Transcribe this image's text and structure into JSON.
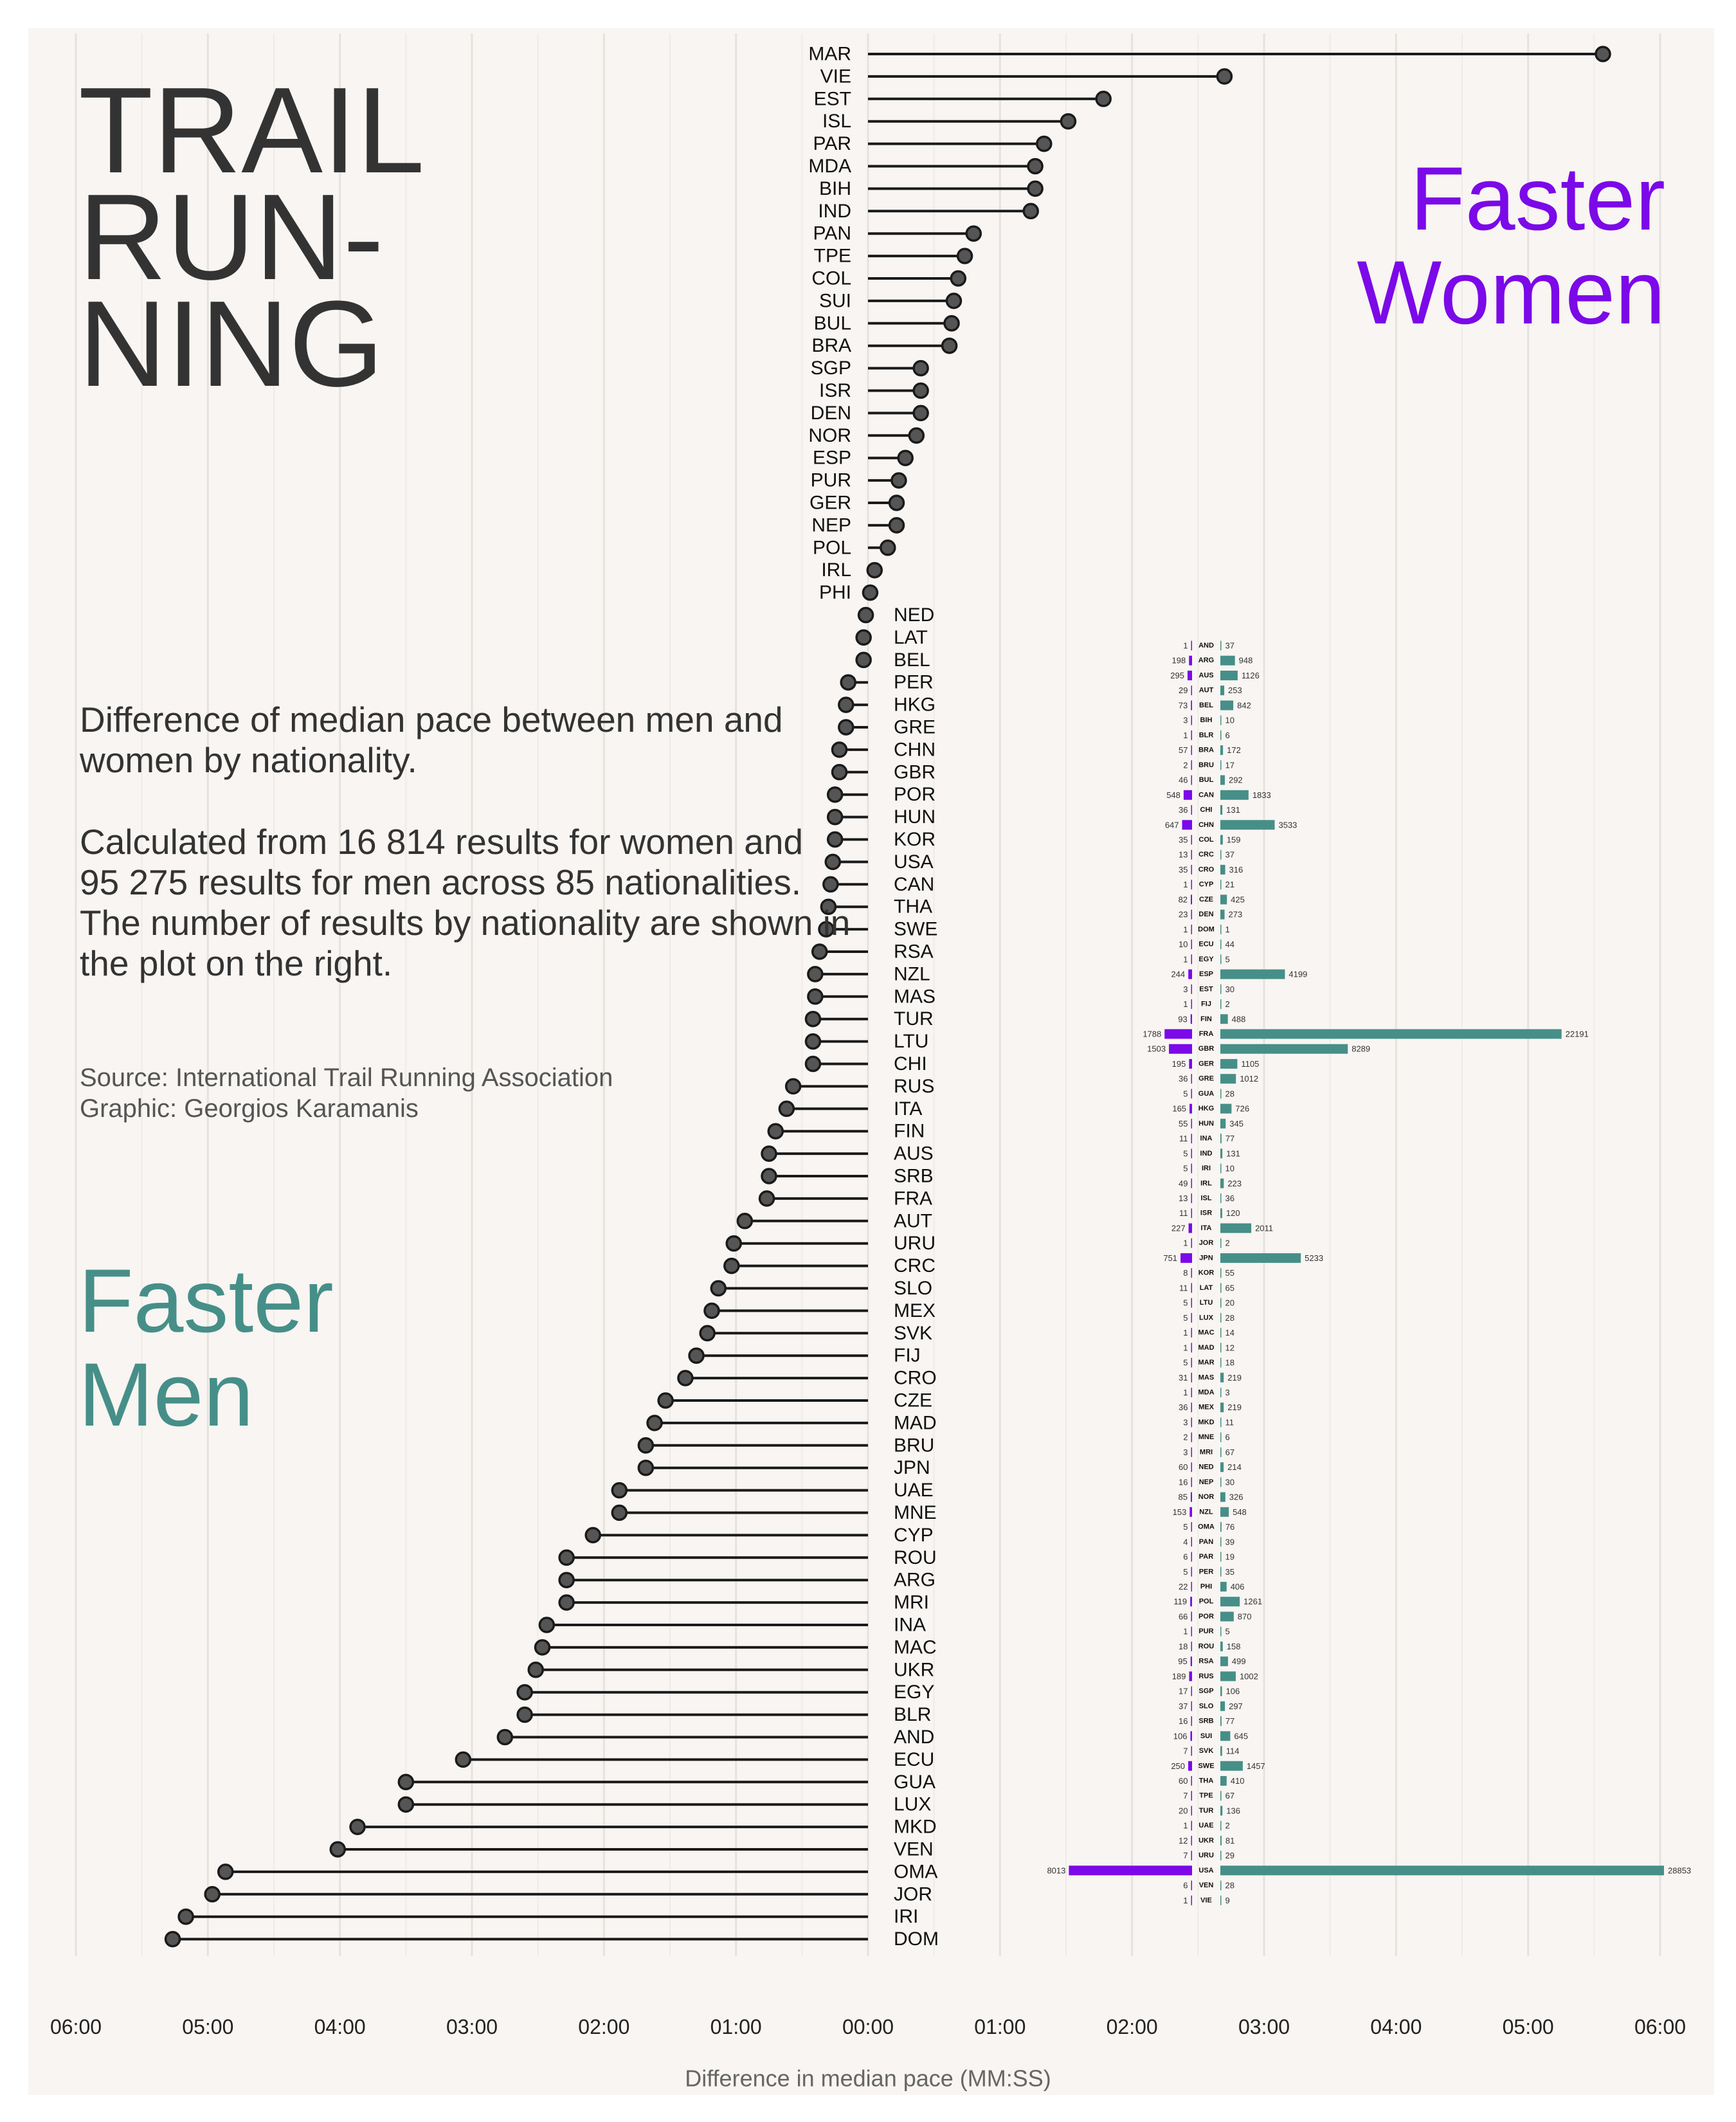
{
  "title": "TRAIL\nRUN-\nNING",
  "faster_women_label": "Faster\nWomen",
  "faster_men_label": "Faster\nMen",
  "description": "Difference of median pace between men and women by nationality.",
  "description2": "Calculated from 16 814 results for women and 95 275 results for men across 85 nationalities. The number of results by nationality are shown in the plot on the right.",
  "source": "Source: International Trail Running Association",
  "graphic": "Graphic: Georgios Karamanis",
  "colors": {
    "women": "#7b09e8",
    "men": "#468f88",
    "ink": "#333333",
    "background": "#f8f5f2",
    "point": "#555555"
  },
  "chart_data": [
    {
      "type": "lollipop",
      "xlabel": "Difference in median pace (MM:SS)",
      "x_unit": "seconds (positive = women faster, negative = men faster)",
      "xlim": [
        -360,
        360
      ],
      "x_ticks": [
        -360,
        -300,
        -240,
        -180,
        -120,
        -60,
        0,
        60,
        120,
        180,
        240,
        300,
        360
      ],
      "x_tick_labels": [
        "06:00",
        "05:00",
        "04:00",
        "03:00",
        "02:00",
        "01:00",
        "00:00",
        "01:00",
        "02:00",
        "03:00",
        "04:00",
        "05:00",
        "06:00"
      ],
      "grid": "vertical, every 30 seconds",
      "countries": [
        "MAR",
        "VIE",
        "EST",
        "ISL",
        "PAR",
        "MDA",
        "BIH",
        "IND",
        "PAN",
        "TPE",
        "COL",
        "SUI",
        "BUL",
        "BRA",
        "SGP",
        "ISR",
        "DEN",
        "NOR",
        "ESP",
        "PUR",
        "GER",
        "NEP",
        "POL",
        "IRL",
        "PHI",
        "NED",
        "LAT",
        "BEL",
        "PER",
        "HKG",
        "GRE",
        "CHN",
        "GBR",
        "POR",
        "HUN",
        "KOR",
        "USA",
        "CAN",
        "THA",
        "SWE",
        "RSA",
        "NZL",
        "MAS",
        "TUR",
        "LTU",
        "CHI",
        "RUS",
        "ITA",
        "FIN",
        "AUS",
        "SRB",
        "FRA",
        "AUT",
        "URU",
        "CRC",
        "SLO",
        "MEX",
        "SVK",
        "FIJ",
        "CRO",
        "CZE",
        "MAD",
        "BRU",
        "JPN",
        "UAE",
        "MNE",
        "CYP",
        "ROU",
        "ARG",
        "MRI",
        "INA",
        "MAC",
        "UKR",
        "EGY",
        "BLR",
        "AND",
        "ECU",
        "GUA",
        "LUX",
        "MKD",
        "VEN",
        "OMA",
        "JOR",
        "IRI",
        "DOM"
      ],
      "values": [
        334,
        162,
        107,
        91,
        80,
        76,
        76,
        74,
        48,
        44,
        41,
        39,
        38,
        37,
        24,
        24,
        24,
        22,
        17,
        14,
        13,
        13,
        9,
        3,
        1,
        -1,
        -2,
        -2,
        -9,
        -10,
        -10,
        -13,
        -13,
        -15,
        -15,
        -15,
        -16,
        -17,
        -18,
        -19,
        -22,
        -24,
        -24,
        -25,
        -25,
        -25,
        -34,
        -37,
        -42,
        -45,
        -45,
        -46,
        -56,
        -61,
        -62,
        -68,
        -71,
        -73,
        -78,
        -83,
        -92,
        -97,
        -101,
        -101,
        -113,
        -113,
        -125,
        -137,
        -137,
        -137,
        -146,
        -148,
        -151,
        -156,
        -156,
        -165,
        -184,
        -210,
        -210,
        -232,
        -241,
        -292,
        -298,
        -310,
        -316
      ]
    },
    {
      "type": "bar",
      "description": "Number of results by nationality",
      "countries": [
        "AND",
        "ARG",
        "AUS",
        "AUT",
        "BEL",
        "BIH",
        "BLR",
        "BRA",
        "BRU",
        "BUL",
        "CAN",
        "CHI",
        "CHN",
        "COL",
        "CRC",
        "CRO",
        "CYP",
        "CZE",
        "DEN",
        "DOM",
        "ECU",
        "EGY",
        "ESP",
        "EST",
        "FIJ",
        "FIN",
        "FRA",
        "GBR",
        "GER",
        "GRE",
        "GUA",
        "HKG",
        "HUN",
        "INA",
        "IND",
        "IRI",
        "IRL",
        "ISL",
        "ISR",
        "ITA",
        "JOR",
        "JPN",
        "KOR",
        "LAT",
        "LTU",
        "LUX",
        "MAC",
        "MAD",
        "MAR",
        "MAS",
        "MDA",
        "MEX",
        "MKD",
        "MNE",
        "MRI",
        "NED",
        "NEP",
        "NOR",
        "NZL",
        "OMA",
        "PAN",
        "PAR",
        "PER",
        "PHI",
        "POL",
        "POR",
        "PUR",
        "ROU",
        "RSA",
        "RUS",
        "SGP",
        "SLO",
        "SRB",
        "SUI",
        "SVK",
        "SWE",
        "THA",
        "TPE",
        "TUR",
        "UAE",
        "UKR",
        "URU",
        "USA",
        "VEN",
        "VIE"
      ],
      "series": [
        {
          "name": "women",
          "values": [
            1,
            198,
            295,
            29,
            73,
            3,
            1,
            57,
            2,
            46,
            548,
            36,
            647,
            35,
            13,
            35,
            1,
            82,
            23,
            1,
            10,
            1,
            244,
            3,
            1,
            93,
            1788,
            1503,
            195,
            36,
            5,
            165,
            55,
            11,
            5,
            5,
            49,
            13,
            11,
            227,
            1,
            751,
            8,
            11,
            5,
            5,
            1,
            1,
            5,
            31,
            1,
            36,
            3,
            2,
            3,
            60,
            16,
            85,
            153,
            5,
            4,
            6,
            5,
            22,
            119,
            66,
            1,
            18,
            95,
            189,
            17,
            37,
            16,
            106,
            7,
            250,
            60,
            7,
            20,
            1,
            12,
            7,
            8013,
            6,
            1
          ]
        },
        {
          "name": "men",
          "values": [
            37,
            948,
            1126,
            253,
            842,
            10,
            6,
            172,
            17,
            292,
            1833,
            131,
            3533,
            159,
            37,
            316,
            21,
            425,
            273,
            1,
            44,
            5,
            4199,
            30,
            2,
            488,
            22191,
            8289,
            1105,
            1012,
            28,
            726,
            345,
            77,
            131,
            10,
            223,
            36,
            120,
            2011,
            2,
            5233,
            55,
            65,
            20,
            28,
            14,
            12,
            18,
            219,
            3,
            219,
            11,
            6,
            67,
            214,
            30,
            326,
            548,
            76,
            39,
            19,
            35,
            406,
            1261,
            870,
            5,
            158,
            499,
            1002,
            106,
            297,
            77,
            645,
            114,
            1457,
            410,
            67,
            136,
            2,
            81,
            29,
            28853,
            28,
            9
          ]
        }
      ]
    }
  ]
}
